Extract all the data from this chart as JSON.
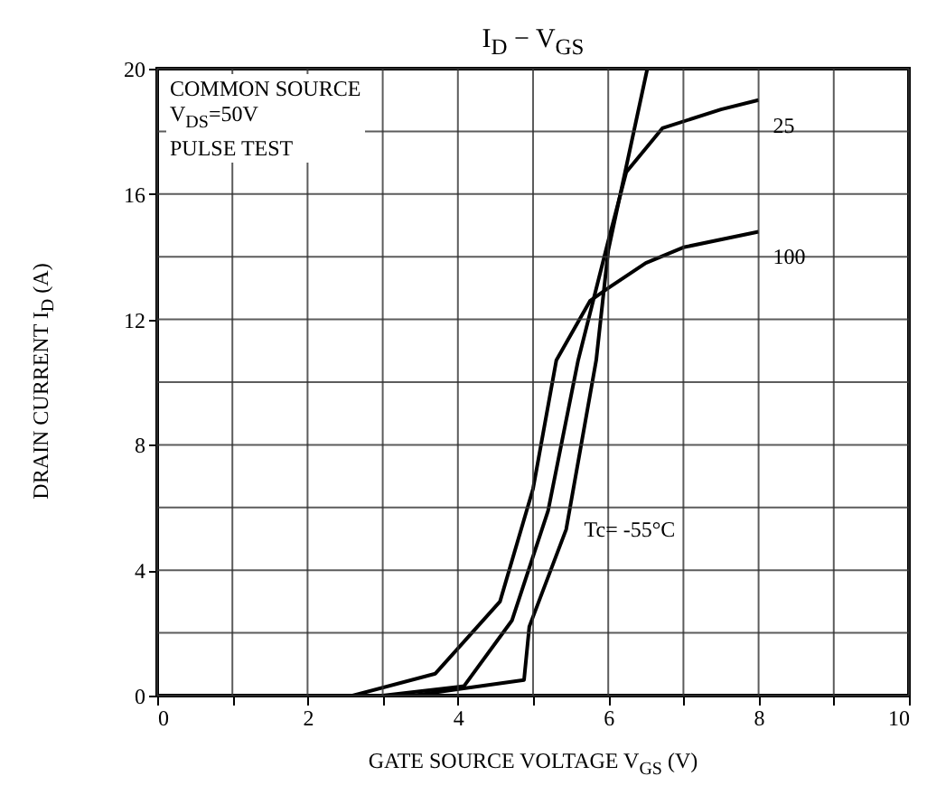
{
  "chart_data": {
    "type": "line",
    "title": "I$_{D}$ − V$_{GS}$",
    "xlabel": "GATE SOURCE VOLTAGE   V$_{GS}$   (V)",
    "ylabel": "DRAIN CURRENT   I$_{D}$   (A)",
    "xlim": [
      0,
      10
    ],
    "ylim": [
      0,
      20
    ],
    "xticks": [
      0,
      {
        "value": 1,
        "label": null
      },
      2,
      {
        "value": 3,
        "label": null
      },
      4,
      {
        "value": 5,
        "label": null
      },
      6,
      {
        "value": 7,
        "label": null
      },
      8,
      {
        "value": 9,
        "label": null
      },
      10
    ],
    "yticks": [
      0,
      {
        "value": 2,
        "label": null
      },
      4,
      {
        "value": 6,
        "label": null
      },
      8,
      {
        "value": 10,
        "label": null
      },
      12,
      {
        "value": 14,
        "label": null
      },
      16,
      {
        "value": 18,
        "label": null
      },
      20
    ],
    "grid": true,
    "series": [
      {
        "name": "100",
        "color": "#000000",
        "x": [
          0,
          2.6,
          3.7,
          4.56,
          5.0,
          5.31,
          5.76,
          6.0,
          6.5,
          7.0,
          8.0
        ],
        "values": [
          0,
          0,
          0.7,
          3.0,
          6.6,
          10.7,
          12.6,
          13.0,
          13.8,
          14.3,
          14.8
        ]
      },
      {
        "name": "25",
        "color": "#000000",
        "x": [
          0,
          3.0,
          4.08,
          4.72,
          5.2,
          5.6,
          6.0,
          6.24,
          6.72,
          7.5,
          8.0
        ],
        "values": [
          0,
          0,
          0.3,
          2.4,
          5.9,
          10.7,
          14.5,
          16.7,
          18.1,
          18.7,
          19.0
        ]
      },
      {
        "name": "Tc= -55°C",
        "color": "#000000",
        "x": [
          0,
          3.4,
          4.88,
          4.95,
          5.44,
          5.84,
          6.0,
          6.52
        ],
        "values": [
          0,
          0,
          0.5,
          2.2,
          5.3,
          10.7,
          14.2,
          20
        ]
      }
    ],
    "annotations": [
      "COMMON SOURCE",
      "V$_{DS}$=50V",
      "PULSE TEST"
    ]
  }
}
